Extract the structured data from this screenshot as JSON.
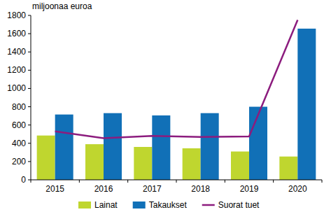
{
  "chart_data": {
    "type": "bar",
    "y_label": "miljoonaa euroa",
    "categories": [
      "2015",
      "2016",
      "2017",
      "2018",
      "2019",
      "2020"
    ],
    "series": [
      {
        "name": "Lainat",
        "color": "#bfd62f",
        "type": "bar",
        "values": [
          485,
          390,
          360,
          345,
          310,
          255
        ]
      },
      {
        "name": "Takaukset",
        "color": "#1170b7",
        "type": "bar",
        "values": [
          715,
          730,
          705,
          730,
          800,
          1655
        ]
      },
      {
        "name": "Suorat tuet",
        "color": "#8c1c7e",
        "type": "line",
        "values": [
          530,
          455,
          480,
          470,
          475,
          1750
        ]
      }
    ],
    "ylim": [
      0,
      1800
    ],
    "yticks": [
      0,
      200,
      400,
      600,
      800,
      1000,
      1200,
      1400,
      1600,
      1800
    ],
    "grid": false,
    "legend": "bottom"
  }
}
